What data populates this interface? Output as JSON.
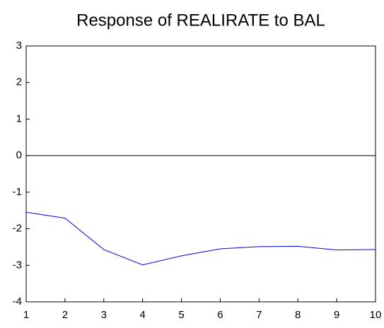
{
  "chart_data": {
    "type": "line",
    "title": "Response of REALIRATE to BAL",
    "x": [
      1,
      2,
      3,
      4,
      5,
      6,
      7,
      8,
      9,
      10
    ],
    "values": [
      -1.55,
      -1.71,
      -2.57,
      -2.99,
      -2.74,
      -2.55,
      -2.49,
      -2.48,
      -2.58,
      -2.57
    ],
    "color": "#0000ff",
    "xlim": [
      1,
      10
    ],
    "xticks": [
      1,
      2,
      3,
      4,
      5,
      6,
      7,
      8,
      9,
      10
    ],
    "ylim": [
      -4,
      3
    ],
    "yticks": [
      -4,
      -3,
      -2,
      -1,
      0,
      1,
      2,
      3
    ],
    "zero_line": true
  }
}
